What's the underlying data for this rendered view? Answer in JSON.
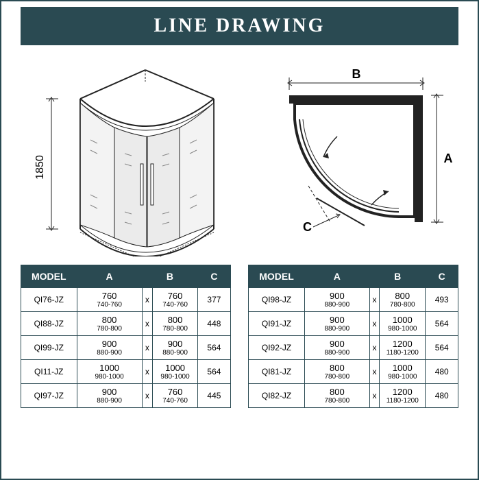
{
  "title": "LINE DRAWING",
  "colors": {
    "primary": "#2a4a52",
    "white": "#ffffff",
    "border": "#2a4a52",
    "text": "#222222"
  },
  "diagram_left": {
    "height_label": "1850",
    "type": "isometric_shower_enclosure"
  },
  "diagram_right": {
    "labels": {
      "A": "A",
      "B": "B",
      "C": "C"
    },
    "type": "plan_view"
  },
  "table_headers": [
    "MODEL",
    "A",
    "B",
    "C"
  ],
  "table_left": {
    "rows": [
      {
        "model": "QI76-JZ",
        "a_main": "760",
        "a_sub": "740-760",
        "x": "x",
        "b_main": "760",
        "b_sub": "740-760",
        "c": "377"
      },
      {
        "model": "QI88-JZ",
        "a_main": "800",
        "a_sub": "780-800",
        "x": "x",
        "b_main": "800",
        "b_sub": "780-800",
        "c": "448"
      },
      {
        "model": "QI99-JZ",
        "a_main": "900",
        "a_sub": "880-900",
        "x": "x",
        "b_main": "900",
        "b_sub": "880-900",
        "c": "564"
      },
      {
        "model": "QI11-JZ",
        "a_main": "1000",
        "a_sub": "980-1000",
        "x": "x",
        "b_main": "1000",
        "b_sub": "980-1000",
        "c": "564"
      },
      {
        "model": "QI97-JZ",
        "a_main": "900",
        "a_sub": "880-900",
        "x": "x",
        "b_main": "760",
        "b_sub": "740-760",
        "c": "445"
      }
    ]
  },
  "table_right": {
    "rows": [
      {
        "model": "QI98-JZ",
        "a_main": "900",
        "a_sub": "880-900",
        "x": "x",
        "b_main": "800",
        "b_sub": "780-800",
        "c": "493"
      },
      {
        "model": "QI91-JZ",
        "a_main": "900",
        "a_sub": "880-900",
        "x": "x",
        "b_main": "1000",
        "b_sub": "980-1000",
        "c": "564"
      },
      {
        "model": "QI92-JZ",
        "a_main": "900",
        "a_sub": "880-900",
        "x": "x",
        "b_main": "1200",
        "b_sub": "1180-1200",
        "c": "564"
      },
      {
        "model": "QI81-JZ",
        "a_main": "800",
        "a_sub": "780-800",
        "x": "x",
        "b_main": "1000",
        "b_sub": "980-1000",
        "c": "480"
      },
      {
        "model": "QI82-JZ",
        "a_main": "800",
        "a_sub": "780-800",
        "x": "x",
        "b_main": "1200",
        "b_sub": "1180-1200",
        "c": "480"
      }
    ]
  }
}
